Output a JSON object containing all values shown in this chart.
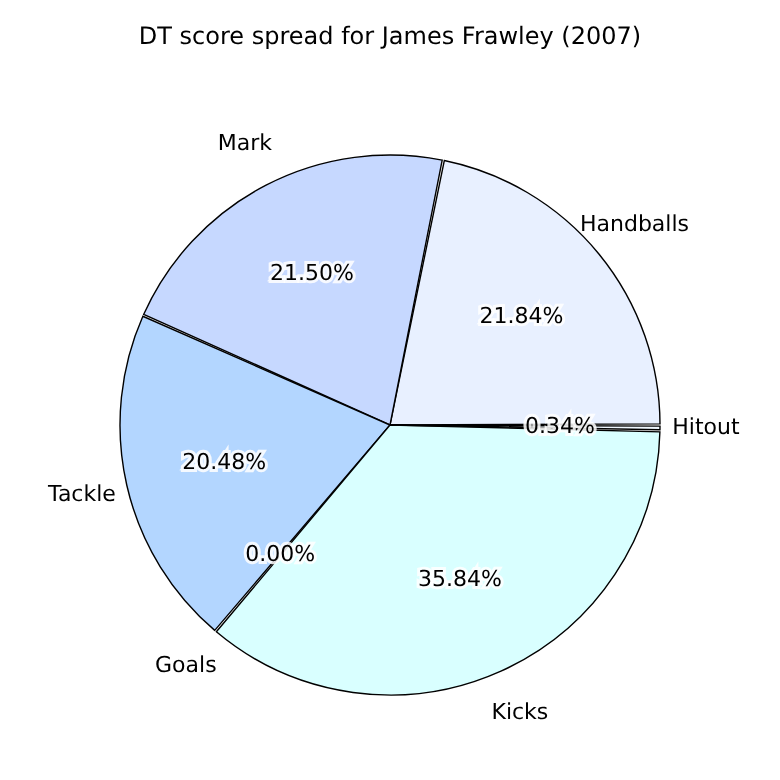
{
  "chart_data": {
    "type": "pie",
    "title": "DT score spread for James Frawley (2007)",
    "categories": [
      "Handballs",
      "Mark",
      "Tackle",
      "Goals",
      "Kicks",
      "Hitout"
    ],
    "values": [
      21.84,
      21.5,
      20.48,
      0.0,
      35.84,
      0.34
    ],
    "value_labels": [
      "21.84%",
      "21.50%",
      "20.48%",
      "0.00%",
      "35.84%",
      "0.34%"
    ],
    "colors": [
      "#e8f0ff",
      "#c6d8ff",
      "#b3d6ff",
      "#b0c4de",
      "#d9ffff",
      "#f0f8ff"
    ],
    "legend": false
  }
}
